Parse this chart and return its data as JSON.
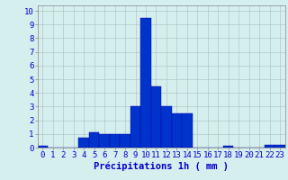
{
  "hours": [
    0,
    1,
    2,
    3,
    4,
    5,
    6,
    7,
    8,
    9,
    10,
    11,
    12,
    13,
    14,
    15,
    16,
    17,
    18,
    19,
    20,
    21,
    22,
    23
  ],
  "values": [
    0.1,
    0.0,
    0.0,
    0.0,
    0.7,
    1.1,
    1.0,
    1.0,
    1.0,
    3.0,
    9.5,
    4.5,
    3.0,
    2.5,
    2.5,
    0.0,
    0.0,
    0.0,
    0.1,
    0.0,
    0.0,
    0.0,
    0.2,
    0.2
  ],
  "bar_color": "#0033cc",
  "bar_edge_color": "#0000aa",
  "background_color": "#d5eeee",
  "grid_color": "#b0c8c8",
  "xlabel": "Précipitations 1h ( mm )",
  "ylabel_ticks": [
    0,
    1,
    2,
    3,
    4,
    5,
    6,
    7,
    8,
    9,
    10
  ],
  "ylim": [
    0,
    10.4
  ],
  "xlabel_color": "#0000cc",
  "tick_color": "#0000cc",
  "xlabel_fontsize": 7.5,
  "tick_fontsize": 6.5
}
